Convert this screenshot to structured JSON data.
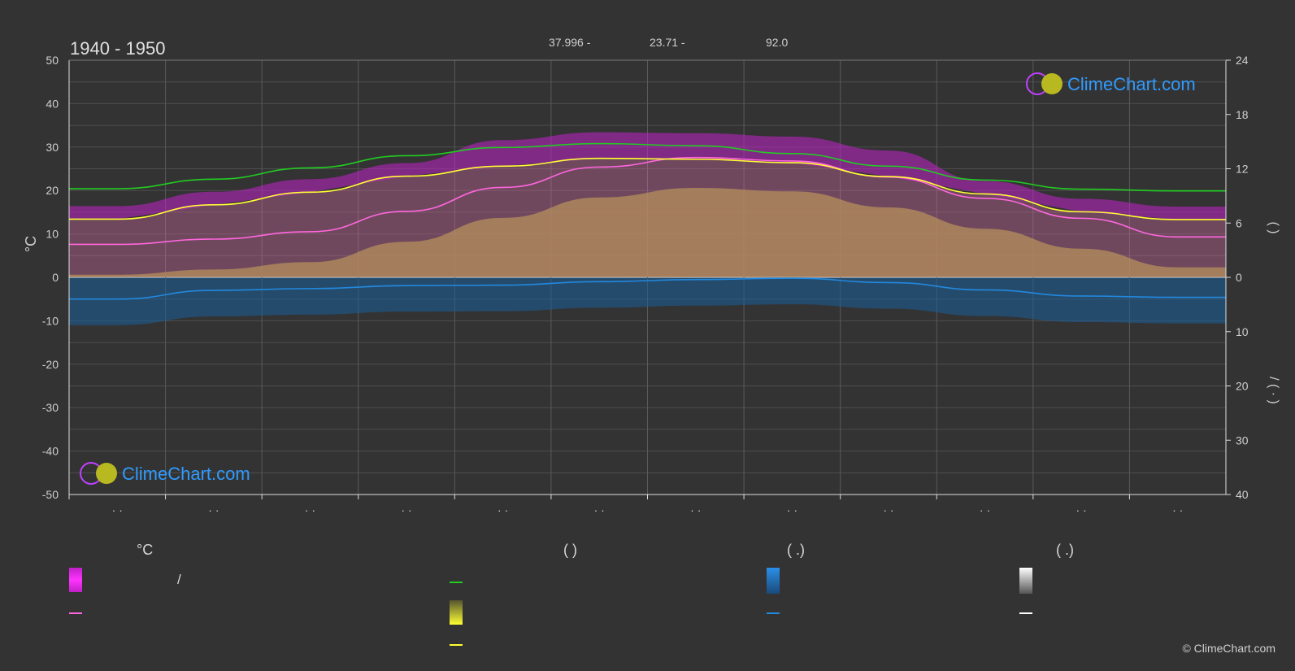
{
  "chart_data": {
    "type": "area",
    "title": "1940 - 1950",
    "header_stats": [
      "37.996 -",
      "23.71 -",
      "92.0"
    ],
    "y_left": {
      "label": "°C",
      "ylim": [
        -50,
        50
      ],
      "ticks": [
        50,
        40,
        30,
        20,
        10,
        0,
        -10,
        -20,
        -30,
        -40,
        -50
      ]
    },
    "y_right_top": {
      "label": "( )",
      "ylim": [
        0,
        24
      ],
      "ticks": [
        24,
        18,
        12,
        6,
        0
      ]
    },
    "y_right_bottom": {
      "label": "/ ( · )",
      "ylim": [
        0,
        40
      ],
      "ticks": [
        0,
        10,
        20,
        30,
        40
      ]
    },
    "month_labels": [
      "· ·",
      "· ·",
      "· ·",
      "· ·",
      "· ·",
      "· ·",
      "· ·",
      "· ·",
      "· ·",
      "· ·",
      "· ·",
      "· ·"
    ],
    "x_months": [
      0.5,
      1.5,
      2.5,
      3.5,
      4.5,
      5.5,
      6.5,
      7.5,
      8.5,
      9.5,
      10.5,
      11.5
    ],
    "series": [
      {
        "name": "",
        "values": [
          7.6,
          8.8,
          10.5,
          15.2,
          20.7,
          25.4,
          27.6,
          26.8,
          23.1,
          18.2,
          13.6,
          9.3
        ]
      },
      {
        "name": "",
        "values": [
          13.4,
          16.7,
          19.6,
          23.3,
          25.6,
          27.4,
          27.2,
          26.4,
          23.2,
          19.2,
          15.1,
          13.3
        ]
      },
      {
        "name": "",
        "values": [
          20.4,
          22.6,
          25.2,
          28.0,
          29.9,
          30.8,
          30.3,
          28.5,
          25.6,
          22.4,
          20.3,
          19.9
        ]
      },
      {
        "name": "",
        "values": [
          -5.0,
          -3.0,
          -2.6,
          -1.9,
          -1.8,
          -1.0,
          -0.5,
          -0.2,
          -1.2,
          -2.9,
          -4.3,
          -4.6
        ]
      }
    ],
    "grid": true,
    "colors": {
      "max_band": "#c020c8",
      "mean_band": "#e070b0",
      "min_band": "#a0a030",
      "line_pink": "#ff66dd",
      "line_yellow": "#ffff33",
      "line_green": "#22cc22",
      "line_blue": "#2288dd",
      "precip_band": "#1a5f9a",
      "snow_band": "#888888"
    }
  },
  "watermark": {
    "text": "ClimeChart.com"
  },
  "legend": {
    "headers": [
      "°C",
      "( )",
      "( .)",
      "( .)"
    ],
    "temp_slash": "/"
  },
  "copyright": "© ClimeChart.com"
}
